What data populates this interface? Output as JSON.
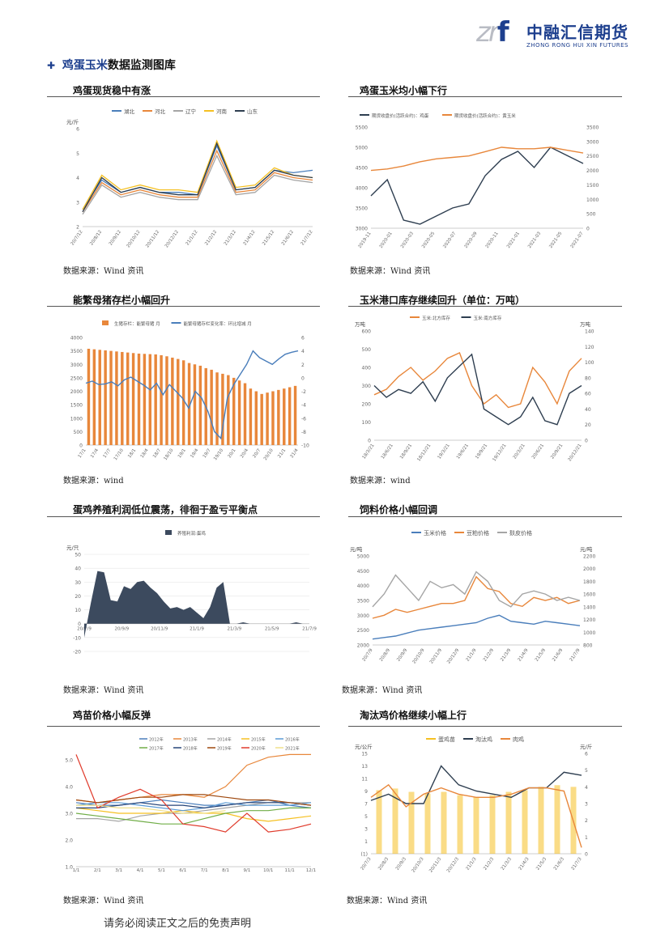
{
  "header": {
    "logo_mark": "zrf",
    "logo_cn": "中融汇信期货",
    "logo_en": "ZHONG RONG HUI XIN FUTURES"
  },
  "section": {
    "title_highlight": "鸡蛋玉米",
    "title_rest": "数据监测图库"
  },
  "footer": {
    "disclaimer": "请务必阅读正文之后的免责声明"
  },
  "panels": [
    {
      "title": "鸡蛋现货稳中有涨",
      "source": "数据来源：Wind 资讯",
      "chart_data": {
        "type": "line",
        "unit_left": "元/斤",
        "y_ticks": [
          "2",
          "3",
          "4",
          "5",
          "6"
        ],
        "x_ticks": [
          "20/7/12",
          "20/8/12",
          "20/9/12",
          "20/10/12",
          "20/11/12",
          "20/12/12",
          "21/1/12",
          "21/2/12",
          "21/3/12",
          "21/4/12",
          "21/5/12",
          "21/6/12",
          "21/7/12"
        ],
        "ylim": [
          2,
          6
        ],
        "series": [
          {
            "name": "湖北",
            "color": "#4a7ebb",
            "values": [
              2.7,
              3.9,
              3.4,
              3.6,
              3.4,
              3.4,
              3.3,
              5.3,
              3.5,
              3.6,
              4.3,
              4.2,
              4.3
            ]
          },
          {
            "name": "河北",
            "color": "#e8873b",
            "values": [
              2.6,
              3.8,
              3.3,
              3.5,
              3.3,
              3.2,
              3.2,
              5.1,
              3.4,
              3.5,
              4.2,
              4.0,
              3.9
            ]
          },
          {
            "name": "辽宁",
            "color": "#a5a5a5",
            "values": [
              2.5,
              3.7,
              3.2,
              3.4,
              3.2,
              3.1,
              3.1,
              4.9,
              3.3,
              3.4,
              4.1,
              3.9,
              3.8
            ]
          },
          {
            "name": "河南",
            "color": "#f5c022",
            "values": [
              2.7,
              4.1,
              3.5,
              3.7,
              3.5,
              3.5,
              3.4,
              5.5,
              3.6,
              3.7,
              4.4,
              4.1,
              4.0
            ]
          },
          {
            "name": "山东",
            "color": "#2e3e50",
            "values": [
              2.6,
              4.0,
              3.4,
              3.6,
              3.4,
              3.3,
              3.3,
              5.4,
              3.5,
              3.6,
              4.3,
              4.1,
              4.0
            ]
          }
        ]
      }
    },
    {
      "title": "鸡蛋玉米均小幅下行",
      "source": "数据来源：Wind 资讯",
      "chart_data": {
        "type": "line",
        "y_ticks_left": [
          "3000",
          "3500",
          "4000",
          "4500",
          "5000",
          "5500"
        ],
        "y_ticks_right": [
          "0",
          "500",
          "1000",
          "1500",
          "2000",
          "2500",
          "3000",
          "3500"
        ],
        "x_ticks": [
          "2019-11",
          "2020-01",
          "2020-03",
          "2020-05",
          "2020-07",
          "2020-09",
          "2020-11",
          "2021-01",
          "2021-03",
          "2021-05",
          "2021-07"
        ],
        "series": [
          {
            "name": "期货收盘价(活跃合约)：鸡蛋",
            "axis": "left",
            "color": "#2e3e50",
            "values": [
              3800,
              4200,
              3200,
              3100,
              3300,
              3500,
              3600,
              4300,
              4700,
              4900,
              4500,
              5000,
              4800,
              4600
            ]
          },
          {
            "name": "期货收盘价(活跃合约)：黄玉米",
            "axis": "right",
            "color": "#e8873b",
            "values": [
              2000,
              2050,
              2150,
              2300,
              2400,
              2450,
              2500,
              2650,
              2800,
              2750,
              2750,
              2800,
              2700,
              2600
            ]
          }
        ]
      }
    },
    {
      "title": "能繁母猪存栏小幅回升",
      "source": "数据来源：wind",
      "chart_data": {
        "type": "bar",
        "y_ticks_left": [
          "0",
          "500",
          "1000",
          "1500",
          "2000",
          "2500",
          "3000",
          "3500",
          "4000"
        ],
        "y_ticks_right": [
          "-10",
          "-8",
          "-6",
          "-4",
          "-2",
          "0",
          "2",
          "4",
          "6"
        ],
        "x_ticks": [
          "17/1",
          "17/4",
          "17/7",
          "17/10",
          "18/1",
          "18/4",
          "18/7",
          "18/10",
          "19/1",
          "19/4",
          "19/7",
          "19/10",
          "20/1",
          "20/4",
          "20/7",
          "20/10",
          "21/1",
          "21/4"
        ],
        "series": [
          {
            "name": "生猪存栏：能繁母猪 月",
            "axis": "left",
            "color": "#e8873b",
            "values": [
              3580,
              3560,
              3540,
              3520,
              3500,
              3480,
              3460,
              3440,
              3420,
              3400,
              3390,
              3380,
              3370,
              3340,
              3300,
              3250,
              3200,
              3150,
              3050,
              3000,
              2950,
              2860,
              2800,
              2700,
              2650,
              2600,
              2500,
              2400,
              2300,
              2100,
              2000,
              1900,
              1950,
              2000,
              2050,
              2100,
              2150,
              2200
            ]
          },
          {
            "name": "能繁母猪存栏变化率：环比增减 月",
            "axis": "right",
            "color": "#4a7ebb",
            "values": [
              -0.8,
              -0.5,
              -1.0,
              -0.9,
              -0.6,
              -1.2,
              -0.3,
              0.1,
              -0.5,
              -1.1,
              -1.8,
              -0.8,
              -2.5,
              -1.0,
              -2.0,
              -3.0,
              -4.5,
              -2.0,
              -3.0,
              -5.0,
              -8.0,
              -9.0,
              -3.0,
              -1.0,
              0.5,
              2.0,
              4.0,
              3.0,
              2.5,
              2.0,
              2.8,
              3.5,
              3.8,
              4.0
            ]
          }
        ]
      }
    },
    {
      "title": "玉米港口库存继续回升（单位：万吨）",
      "source": "数据来源：wind",
      "chart_data": {
        "type": "line",
        "unit_left": "万吨",
        "unit_right": "万吨",
        "y_ticks_left": [
          "0",
          "100",
          "200",
          "300",
          "400",
          "500",
          "600"
        ],
        "y_ticks_right": [
          "0",
          "20",
          "40",
          "60",
          "80",
          "100",
          "120",
          "140"
        ],
        "x_ticks": [
          "18/3/21",
          "18/6/21",
          "18/9/21",
          "18/12/21",
          "19/3/21",
          "19/6/21",
          "19/9/21",
          "19/12/21",
          "20/3/21",
          "20/6/21",
          "20/9/21",
          "20/12/21"
        ],
        "series": [
          {
            "name": "玉米:北方库存",
            "axis": "left",
            "color": "#e8873b",
            "values": [
              250,
              280,
              350,
              400,
              330,
              380,
              450,
              480,
              300,
              200,
              250,
              180,
              200,
              400,
              320,
              200,
              380,
              450
            ]
          },
          {
            "name": "玉米:南方库存",
            "axis": "right",
            "color": "#2e3e50",
            "values": [
              70,
              55,
              65,
              60,
              75,
              50,
              80,
              95,
              110,
              40,
              30,
              20,
              30,
              55,
              25,
              20,
              60,
              70
            ]
          }
        ]
      }
    },
    {
      "title": "蛋鸡养殖利润低位震荡，徘徊于盈亏平衡点",
      "source": "数据来源：Wind 资讯",
      "chart_data": {
        "type": "area",
        "legend": "养殖利润:蛋鸡",
        "unit_left": "元/只",
        "y_ticks": [
          "-20",
          "-10",
          "0",
          "10",
          "20",
          "30",
          "40",
          "50"
        ],
        "x_ticks": [
          "20/7/9",
          "20/9/9",
          "20/11/9",
          "21/1/9",
          "21/3/9",
          "21/5/9",
          "21/7/9"
        ],
        "values": [
          -10,
          15,
          38,
          37,
          17,
          16,
          27,
          25,
          30,
          31,
          26,
          22,
          16,
          11,
          12,
          10,
          12,
          8,
          4,
          12,
          26,
          30,
          0,
          0,
          1,
          0,
          0,
          0,
          0,
          0,
          0,
          0,
          1,
          0,
          0
        ],
        "ylim": [
          -20,
          50
        ]
      }
    },
    {
      "title": "饲料价格小幅回调",
      "source": "数据来源：Wind 资讯",
      "chart_data": {
        "type": "line",
        "unit_left": "元/吨",
        "unit_right": "元/吨",
        "y_ticks_left": [
          "2000",
          "2500",
          "3000",
          "3500",
          "4000",
          "4500",
          "5000"
        ],
        "y_ticks_right": [
          "800",
          "1000",
          "1200",
          "1400",
          "1600",
          "1800",
          "2000",
          "2200"
        ],
        "x_ticks": [
          "20/7/9",
          "20/8/9",
          "20/9/9",
          "20/10/9",
          "20/11/9",
          "20/12/9",
          "21/1/9",
          "21/2/9",
          "21/3/9",
          "21/4/9",
          "21/5/9",
          "21/6/9",
          "21/7/9"
        ],
        "series": [
          {
            "name": "玉米价格",
            "axis": "left",
            "color": "#4a7ebb",
            "values": [
              2200,
              2250,
              2300,
              2400,
              2500,
              2550,
              2600,
              2650,
              2700,
              2750,
              2900,
              3000,
              2800,
              2750,
              2700,
              2800,
              2750,
              2700,
              2650
            ]
          },
          {
            "name": "豆粕价格",
            "axis": "left",
            "color": "#e8873b",
            "values": [
              2900,
              3000,
              3200,
              3100,
              3200,
              3300,
              3400,
              3400,
              3500,
              4300,
              3900,
              3800,
              3400,
              3300,
              3600,
              3500,
              3600,
              3400,
              3500
            ]
          },
          {
            "name": "麸皮价格",
            "axis": "right",
            "color": "#a5a5a5",
            "values": [
              1400,
              1600,
              1900,
              1700,
              1500,
              1800,
              1700,
              1750,
              1600,
              1950,
              1800,
              1500,
              1400,
              1600,
              1650,
              1600,
              1500,
              1550,
              1500
            ]
          }
        ]
      }
    },
    {
      "title": "鸡苗价格小幅反弹",
      "source": "数据来源：Wind 资讯",
      "chart_data": {
        "type": "line",
        "legend_items": [
          "2012年",
          "2013年",
          "2014年",
          "2015年",
          "2016年",
          "2017年",
          "2018年",
          "2019年",
          "2020年",
          "2021年"
        ],
        "y_ticks": [
          "1.0",
          "2.0",
          "3.0",
          "4.0",
          "5.0"
        ],
        "x_ticks": [
          "1/1",
          "2/1",
          "3/1",
          "4/1",
          "5/1",
          "6/1",
          "7/1",
          "8/1",
          "9/1",
          "10/1",
          "11/1",
          "12/1"
        ],
        "series": [
          {
            "name": "2012年",
            "color": "#4a7ebb",
            "values": [
              3.4,
              3.3,
              3.3,
              3.4,
              3.5,
              3.4,
              3.3,
              3.3,
              3.4,
              3.5,
              3.3,
              3.2
            ]
          },
          {
            "name": "2013年",
            "color": "#e8873b",
            "values": [
              3.5,
              3.4,
              3.5,
              3.6,
              3.7,
              3.7,
              3.6,
              4.0,
              4.8,
              5.1,
              5.2,
              5.2
            ]
          },
          {
            "name": "2014年",
            "color": "#a5a5a5",
            "values": [
              2.8,
              2.8,
              2.7,
              2.9,
              3.0,
              3.0,
              3.1,
              3.2,
              3.3,
              3.4,
              3.4,
              3.4
            ]
          },
          {
            "name": "2015年",
            "color": "#f5c022",
            "values": [
              3.2,
              3.1,
              3.0,
              3.0,
              3.0,
              3.1,
              3.0,
              3.0,
              2.8,
              2.7,
              2.8,
              2.9
            ]
          },
          {
            "name": "2016年",
            "color": "#5b9bd5",
            "values": [
              3.3,
              3.4,
              3.4,
              3.3,
              3.2,
              3.1,
              3.2,
              3.4,
              3.3,
              3.3,
              3.3,
              3.4
            ]
          },
          {
            "name": "2017年",
            "color": "#70ad47",
            "values": [
              3.0,
              2.9,
              2.8,
              2.7,
              2.6,
              2.6,
              2.8,
              3.0,
              3.1,
              3.1,
              3.2,
              3.2
            ]
          },
          {
            "name": "2018年",
            "color": "#264478",
            "values": [
              3.2,
              3.2,
              3.3,
              3.4,
              3.3,
              3.3,
              3.2,
              3.3,
              3.4,
              3.4,
              3.4,
              3.3
            ]
          },
          {
            "name": "2019年",
            "color": "#9e480e",
            "values": [
              3.5,
              3.4,
              3.5,
              3.6,
              3.6,
              3.7,
              3.7,
              3.6,
              3.5,
              3.5,
              3.4,
              3.3
            ]
          },
          {
            "name": "2020年",
            "color": "#e03b2c",
            "values": [
              5.2,
              3.2,
              3.6,
              3.9,
              3.5,
              2.6,
              2.5,
              2.3,
              3.0,
              2.3,
              2.4,
              2.6
            ]
          },
          {
            "name": "2021年",
            "color": "#f0e08a",
            "values": [
              3.3,
              3.3,
              3.2,
              3.2,
              3.1,
              3.0,
              3.0,
              3.1
            ]
          }
        ]
      }
    },
    {
      "title": "淘汰鸡价格继续小幅上行",
      "source": "数据来源：Wind 资讯",
      "chart_data": {
        "type": "line",
        "unit_left": "元/公斤",
        "unit_right": "元/斤",
        "y_ticks_left": [
          "(1)",
          "1",
          "3",
          "5",
          "7",
          "9",
          "11",
          "13",
          "15"
        ],
        "y_ticks_right": [
          "0",
          "1",
          "2",
          "3",
          "4",
          "5",
          "6"
        ],
        "x_ticks": [
          "20/7/3",
          "20/8/3",
          "20/9/3",
          "20/10/3",
          "20/11/3",
          "20/12/3",
          "21/1/3",
          "21/2/3",
          "21/3/3",
          "21/4/3",
          "21/5/3",
          "21/6/3",
          "21/7/3"
        ],
        "series": [
          {
            "name": "蛋鸡苗",
            "axis": "right",
            "color": "#f5c022",
            "values": [
              3.8,
              3.9,
              3.7,
              3.6,
              3.7,
              3.5,
              3.4,
              3.5,
              3.7,
              3.8,
              4.0,
              4.1,
              4.0
            ]
          },
          {
            "name": "淘汰鸡",
            "axis": "left",
            "color": "#2e3e50",
            "values": [
              7.5,
              8.5,
              7.0,
              7.0,
              13.0,
              10.0,
              9.0,
              8.5,
              8.0,
              9.5,
              9.5,
              12.0,
              11.5
            ]
          },
          {
            "name": "肉鸡",
            "axis": "left",
            "color": "#e8873b",
            "values": [
              8.0,
              10.0,
              6.5,
              8.5,
              9.5,
              8.5,
              8.0,
              8.0,
              8.5,
              9.5,
              9.5,
              9.0,
              0.0
            ]
          }
        ]
      }
    }
  ]
}
